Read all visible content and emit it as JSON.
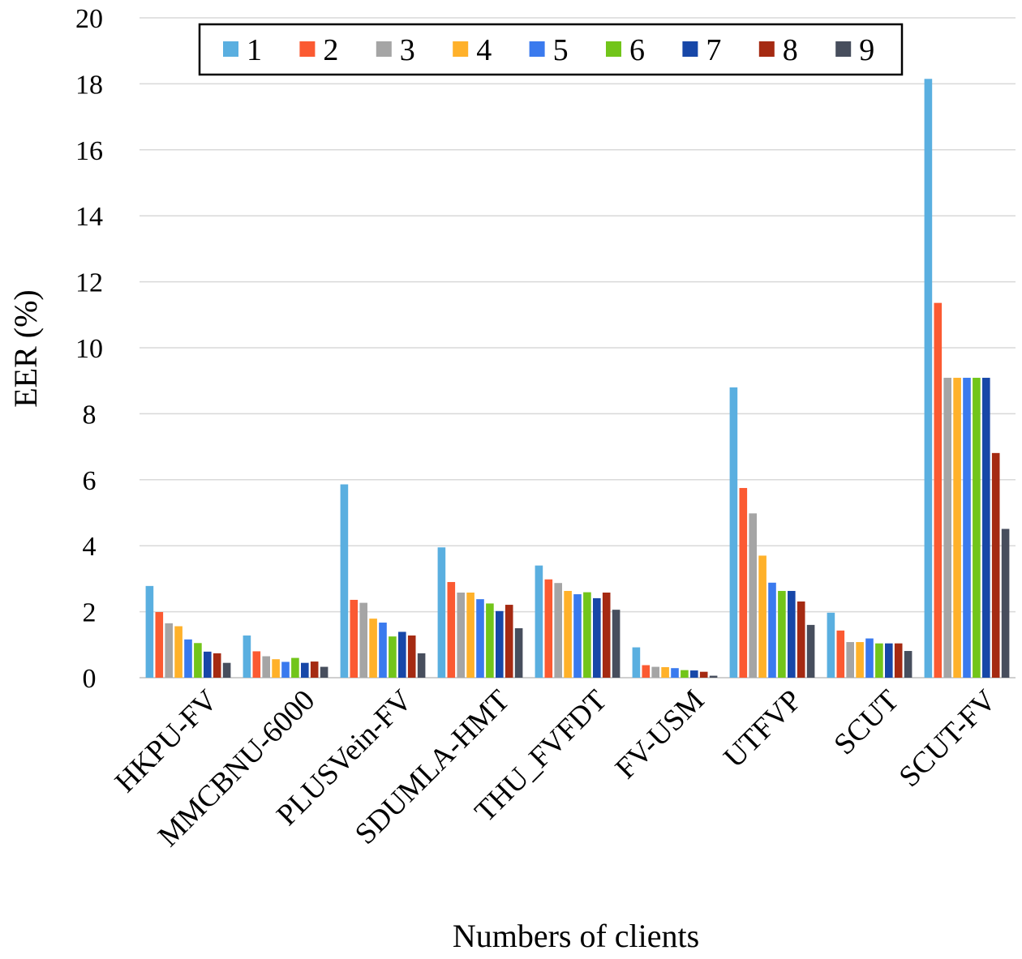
{
  "chart_data": {
    "type": "bar",
    "title": "",
    "xlabel": "Numbers of clients",
    "ylabel": "EER (%)",
    "ylim": [
      0,
      20
    ],
    "yticks": [
      0,
      2,
      4,
      6,
      8,
      10,
      12,
      14,
      16,
      18,
      20
    ],
    "grid": true,
    "legend_position": "top",
    "categories": [
      "HKPU-FV",
      "MMCBNU-6000",
      "PLUSVein-FV",
      "SDUMLA-HMT",
      "THU_FVFDT",
      "FV-USM",
      "UTFVP",
      "SCUT",
      "SCUT-FV"
    ],
    "series": [
      {
        "name": "1",
        "color": "#5aafe0",
        "values": [
          2.78,
          1.28,
          5.86,
          3.95,
          3.4,
          0.92,
          8.8,
          1.97,
          18.15
        ]
      },
      {
        "name": "2",
        "color": "#fb5a32",
        "values": [
          1.99,
          0.8,
          2.36,
          2.9,
          2.98,
          0.38,
          5.75,
          1.43,
          11.36
        ]
      },
      {
        "name": "3",
        "color": "#a5a5a5",
        "values": [
          1.65,
          0.65,
          2.27,
          2.58,
          2.87,
          0.33,
          4.98,
          1.08,
          9.09
        ]
      },
      {
        "name": "4",
        "color": "#ffb12a",
        "values": [
          1.56,
          0.56,
          1.79,
          2.58,
          2.63,
          0.32,
          3.7,
          1.08,
          9.09
        ]
      },
      {
        "name": "5",
        "color": "#3a7aee",
        "values": [
          1.16,
          0.48,
          1.67,
          2.38,
          2.53,
          0.29,
          2.88,
          1.19,
          9.09
        ]
      },
      {
        "name": "6",
        "color": "#72c51a",
        "values": [
          1.05,
          0.6,
          1.25,
          2.25,
          2.59,
          0.23,
          2.63,
          1.04,
          9.09
        ]
      },
      {
        "name": "7",
        "color": "#1747a8",
        "values": [
          0.79,
          0.45,
          1.39,
          2.02,
          2.41,
          0.22,
          2.63,
          1.04,
          9.09
        ]
      },
      {
        "name": "8",
        "color": "#a52a12",
        "values": [
          0.74,
          0.49,
          1.28,
          2.21,
          2.58,
          0.18,
          2.31,
          1.04,
          6.81
        ]
      },
      {
        "name": "9",
        "color": "#474e5d",
        "values": [
          0.45,
          0.33,
          0.74,
          1.5,
          2.06,
          0.06,
          1.6,
          0.81,
          4.51
        ]
      }
    ]
  }
}
